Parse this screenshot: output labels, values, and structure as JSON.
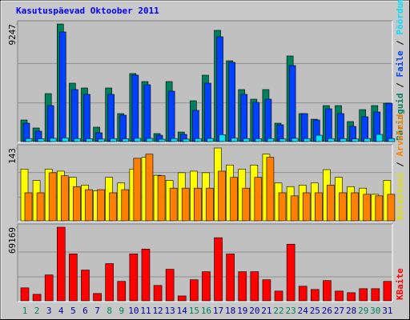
{
  "chart_data": [
    {
      "type": "bar",
      "title": "Kasutuspäevad Oktoober 2011",
      "ylim": [
        0,
        9247
      ],
      "yticks": [
        9247
      ],
      "series": [
        {
          "name": "Päringuid",
          "color": "#00805c",
          "values": [
            1750,
            1125,
            3810,
            9247,
            4625,
            4250,
            1190,
            4250,
            2250,
            5375,
            4750,
            690,
            4750,
            810,
            3250,
            5250,
            8750,
            6375,
            4125,
            3375,
            4125,
            1500,
            6750,
            2250,
            1810,
            2875,
            2875,
            1625,
            2560,
            2875,
            3060
          ]
        },
        {
          "name": "Faile",
          "color": "#0040ff",
          "values": [
            1500,
            875,
            2875,
            8625,
            4125,
            3750,
            750,
            3750,
            2125,
            5250,
            4500,
            560,
            4000,
            625,
            2500,
            4625,
            8250,
            6250,
            3750,
            3125,
            3375,
            1375,
            6000,
            2250,
            1750,
            2625,
            2250,
            1250,
            2000,
            2375,
            3060
          ]
        },
        {
          "name": "Pöördumisi",
          "color": "#00e0ff",
          "values": [
            300,
            280,
            320,
            350,
            300,
            290,
            260,
            300,
            280,
            320,
            310,
            250,
            300,
            260,
            300,
            310,
            600,
            330,
            300,
            290,
            300,
            270,
            320,
            300,
            560,
            300,
            290,
            270,
            300,
            620,
            300
          ]
        }
      ]
    },
    {
      "type": "bar",
      "ylim": [
        0,
        143
      ],
      "yticks": [
        143
      ],
      "series": [
        {
          "name": "Külastusi",
          "color": "#ffff00",
          "values": [
            102,
            80,
            102,
            98,
            86,
            71,
            60,
            86,
            75,
            102,
            125,
            90,
            80,
            95,
            98,
            95,
            143,
            110,
            102,
            110,
            131,
            75,
            68,
            71,
            75,
            101,
            86,
            68,
            65,
            53,
            80
          ]
        },
        {
          "name": "Arvuteid",
          "color": "#ff8000",
          "values": [
            56,
            56,
            95,
            89,
            68,
            62,
            62,
            56,
            62,
            123,
            131,
            89,
            65,
            65,
            65,
            65,
            98,
            86,
            65,
            86,
            125,
            56,
            50,
            56,
            56,
            71,
            56,
            56,
            53,
            50,
            53
          ]
        }
      ]
    },
    {
      "type": "bar",
      "ylim": [
        0,
        69169
      ],
      "yticks": [
        69169
      ],
      "categories": [
        "1",
        "2",
        "3",
        "4",
        "5",
        "6",
        "7",
        "8",
        "9",
        "10",
        "11",
        "12",
        "13",
        "14",
        "15",
        "16",
        "17",
        "18",
        "19",
        "20",
        "21",
        "22",
        "23",
        "24",
        "25",
        "26",
        "27",
        "28",
        "29",
        "30",
        "31"
      ],
      "category_colors": [
        "#00805c",
        "#00805c",
        "#0000a0",
        "#0000a0",
        "#0000a0",
        "#0000a0",
        "#0000a0",
        "#00805c",
        "#00805c",
        "#0000a0",
        "#0000a0",
        "#0000a0",
        "#0000a0",
        "#0000a0",
        "#00805c",
        "#00805c",
        "#0000a0",
        "#0000a0",
        "#0000a0",
        "#0000a0",
        "#0000a0",
        "#00805c",
        "#00805c",
        "#0000a0",
        "#0000a0",
        "#0000a0",
        "#0000a0",
        "#0000a0",
        "#00805c",
        "#00805c",
        "#0000a0"
      ],
      "series": [
        {
          "name": "KBaite",
          "color": "#ff0000",
          "values": [
            12780,
            6770,
            24810,
            69169,
            44370,
            29330,
            7520,
            35340,
            18800,
            44370,
            48880,
            15040,
            30080,
            5260,
            20300,
            27820,
            59410,
            44370,
            27820,
            27820,
            20300,
            9780,
            53390,
            14290,
            11280,
            19550,
            9780,
            8270,
            12030,
            12030,
            18800
          ]
        }
      ]
    }
  ]
}
